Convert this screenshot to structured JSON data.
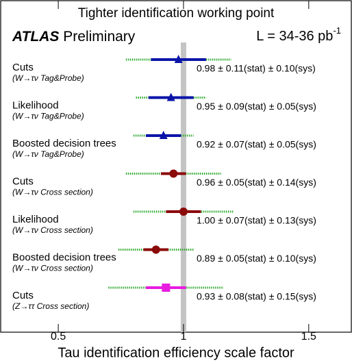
{
  "chart_data": {
    "type": "forest",
    "title": "Tighter identification working point",
    "experiment": "ATLAS",
    "status": "Preliminary",
    "lumi": "L = 34-36 pb",
    "lumi_exponent": "-1",
    "x_label": "Tau identification efficiency scale factor",
    "xlim": [
      0.27,
      1.67
    ],
    "xticks": [
      0.5,
      1,
      1.5
    ],
    "reference_line": 1,
    "total_color": "#33aa33",
    "rows": [
      {
        "label": "Cuts",
        "sublabel": "(W→τν Tag&Probe)",
        "value": 0.98,
        "stat": 0.11,
        "sys": 0.1,
        "value_label": "0.98 ± 0.11(stat) ± 0.10(sys)",
        "marker": "triangle",
        "color": "#0a14a8"
      },
      {
        "label": "Likelihood",
        "sublabel": "(W→τν Tag&Probe)",
        "value": 0.95,
        "stat": 0.09,
        "sys": 0.05,
        "value_label": "0.95 ± 0.09(stat) ± 0.05(sys)",
        "marker": "triangle",
        "color": "#0a14a8"
      },
      {
        "label": "Boosted decision trees",
        "sublabel": "(W→τν Tag&Probe)",
        "value": 0.92,
        "stat": 0.07,
        "sys": 0.05,
        "value_label": "0.92 ± 0.07(stat) ± 0.05(sys)",
        "marker": "triangle",
        "color": "#0a14a8"
      },
      {
        "label": "Cuts",
        "sublabel": "(W→τν Cross section)",
        "value": 0.96,
        "stat": 0.05,
        "sys": 0.14,
        "value_label": "0.96 ± 0.05(stat) ± 0.14(sys)",
        "marker": "circle",
        "color": "#8b0a0a"
      },
      {
        "label": "Likelihood",
        "sublabel": "(W→τν Cross section)",
        "value": 1.0,
        "stat": 0.07,
        "sys": 0.13,
        "value_label": "1.00 ± 0.07(stat) ± 0.13(sys)",
        "marker": "circle",
        "color": "#8b0a0a"
      },
      {
        "label": "Boosted decision trees",
        "sublabel": "(W→τν Cross section)",
        "value": 0.89,
        "stat": 0.05,
        "sys": 0.1,
        "value_label": "0.89 ± 0.05(stat) ± 0.10(sys)",
        "marker": "circle",
        "color": "#8b0a0a"
      },
      {
        "label": "Cuts",
        "sublabel": "(Z→ττ Cross section)",
        "value": 0.93,
        "stat": 0.08,
        "sys": 0.15,
        "value_label": "0.93 ± 0.08(stat) ± 0.15(sys)",
        "marker": "square",
        "color": "#e81ce0"
      }
    ]
  }
}
